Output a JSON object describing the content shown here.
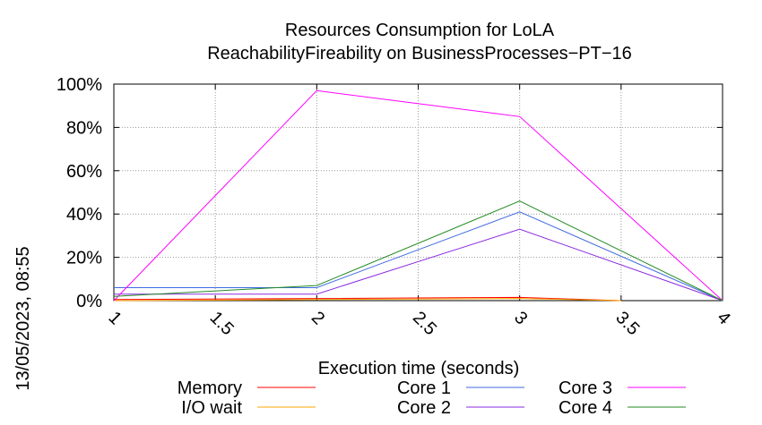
{
  "chart_data": {
    "type": "line",
    "title": "Resources Consumption for LoLA",
    "subtitle": "ReachabilityFireability on BusinessProcesses−PT−16",
    "xlabel": "Execution time (seconds)",
    "ylabel": "",
    "side_label": "13/05/2023, 08:55",
    "xlim": [
      1,
      4
    ],
    "ylim": [
      0,
      100
    ],
    "x_ticks": [
      1,
      1.5,
      2,
      2.5,
      3,
      3.5,
      4
    ],
    "x_tick_labels": [
      "1",
      "1.5",
      "2",
      "2.5",
      "3",
      "3.5",
      "4"
    ],
    "y_ticks": [
      0,
      20,
      40,
      60,
      80,
      100
    ],
    "y_tick_labels": [
      "0%",
      "20%",
      "40%",
      "60%",
      "80%",
      "100%"
    ],
    "grid": true,
    "legend_position": "bottom",
    "series": [
      {
        "name": "Memory",
        "color": "#ff0000",
        "x": [
          1,
          2,
          3,
          3.5
        ],
        "y": [
          0.5,
          1,
          1.5,
          0
        ]
      },
      {
        "name": "I/O wait",
        "color": "#ffa500",
        "x": [
          1,
          2,
          3,
          3.5
        ],
        "y": [
          0,
          0.5,
          1,
          0
        ]
      },
      {
        "name": "Core 1",
        "color": "#4169e1",
        "x": [
          1,
          2,
          3,
          4
        ],
        "y": [
          6,
          6,
          41,
          0
        ]
      },
      {
        "name": "Core 2",
        "color": "#8a2be2",
        "x": [
          1,
          2,
          3,
          4
        ],
        "y": [
          3,
          3,
          33,
          0
        ]
      },
      {
        "name": "Core 3",
        "color": "#ff00ff",
        "x": [
          1,
          2,
          3,
          4
        ],
        "y": [
          0,
          97,
          85,
          0
        ]
      },
      {
        "name": "Core 4",
        "color": "#228b22",
        "x": [
          1,
          2,
          3,
          4
        ],
        "y": [
          2,
          7,
          46,
          0
        ]
      }
    ]
  }
}
